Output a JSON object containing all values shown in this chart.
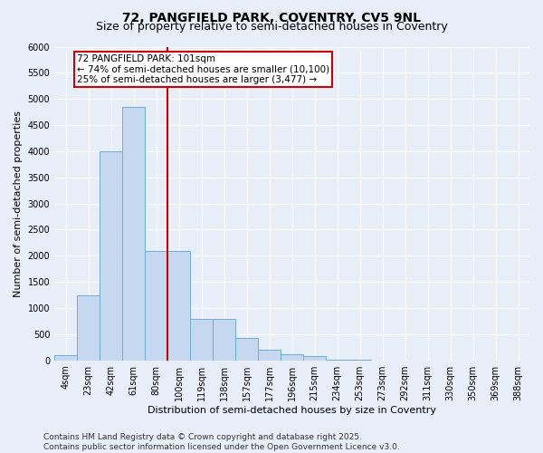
{
  "title_line1": "72, PANGFIELD PARK, COVENTRY, CV5 9NL",
  "title_line2": "Size of property relative to semi-detached houses in Coventry",
  "xlabel": "Distribution of semi-detached houses by size in Coventry",
  "ylabel": "Number of semi-detached properties",
  "categories": [
    "4sqm",
    "23sqm",
    "42sqm",
    "61sqm",
    "80sqm",
    "100sqm",
    "119sqm",
    "138sqm",
    "157sqm",
    "177sqm",
    "196sqm",
    "215sqm",
    "234sqm",
    "253sqm",
    "273sqm",
    "292sqm",
    "311sqm",
    "330sqm",
    "350sqm",
    "369sqm",
    "388sqm"
  ],
  "values": [
    100,
    1250,
    4000,
    4850,
    2100,
    2100,
    800,
    800,
    430,
    200,
    120,
    80,
    20,
    5,
    0,
    0,
    0,
    0,
    0,
    0,
    0
  ],
  "bar_color": "#c5d8f0",
  "bar_edge_color": "#6baed6",
  "vline_x_pos": 4.5,
  "vline_color": "#cc0000",
  "ylim": [
    0,
    6000
  ],
  "yticks": [
    0,
    500,
    1000,
    1500,
    2000,
    2500,
    3000,
    3500,
    4000,
    4500,
    5000,
    5500,
    6000
  ],
  "annotation_title": "72 PANGFIELD PARK: 101sqm",
  "annotation_line1": "← 74% of semi-detached houses are smaller (10,100)",
  "annotation_line2": "25% of semi-detached houses are larger (3,477) →",
  "annotation_box_facecolor": "#ffffff",
  "annotation_box_edgecolor": "#cc0000",
  "footnote_line1": "Contains HM Land Registry data © Crown copyright and database right 2025.",
  "footnote_line2": "Contains public sector information licensed under the Open Government Licence v3.0.",
  "bg_color": "#e8eef7",
  "plot_bg_color": "#e8eef7",
  "title1_fontsize": 10,
  "title2_fontsize": 9,
  "axis_label_fontsize": 8,
  "tick_fontsize": 7,
  "annotation_fontsize": 7.5,
  "footnote_fontsize": 6.5
}
